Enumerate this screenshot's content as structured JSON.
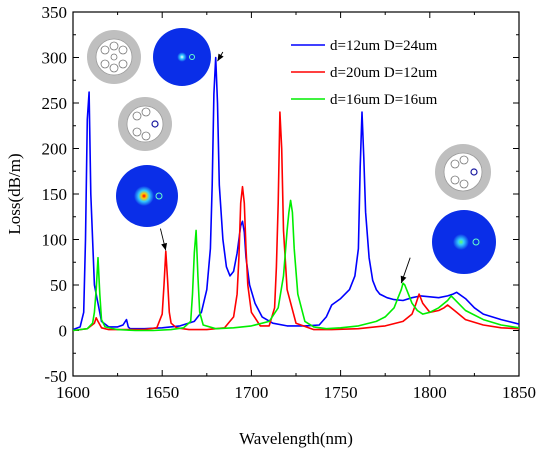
{
  "chart_data": {
    "type": "line",
    "title": "",
    "xlabel": "Wavelength(nm)",
    "ylabel": "Loss(dB/m)",
    "xlim": [
      1600,
      1850
    ],
    "ylim": [
      -50,
      350
    ],
    "xticks": [
      1600,
      1650,
      1700,
      1750,
      1800,
      1850
    ],
    "yticks": [
      -50,
      0,
      50,
      100,
      150,
      200,
      250,
      300,
      350
    ],
    "legend_position": "top-right",
    "grid": false,
    "series": [
      {
        "name": "d=12um D=24um",
        "color": "#0000ff",
        "x": [
          1600,
          1604,
          1606,
          1607,
          1608,
          1609,
          1610,
          1612,
          1616,
          1620,
          1625,
          1628,
          1630,
          1631,
          1632,
          1640,
          1650,
          1660,
          1668,
          1672,
          1675,
          1677,
          1678,
          1679,
          1680,
          1681,
          1682,
          1684,
          1686,
          1688,
          1690,
          1692,
          1694,
          1695,
          1696,
          1697,
          1699,
          1702,
          1706,
          1712,
          1720,
          1730,
          1738,
          1742,
          1745,
          1750,
          1755,
          1758,
          1760,
          1761,
          1762,
          1763,
          1764,
          1766,
          1768,
          1770,
          1772,
          1774,
          1776,
          1780,
          1785,
          1790,
          1795,
          1800,
          1805,
          1810,
          1813,
          1815,
          1820,
          1825,
          1830,
          1840,
          1850
        ],
        "y": [
          1,
          4,
          20,
          100,
          232,
          262,
          150,
          50,
          10,
          4,
          4,
          6,
          12,
          4,
          2,
          2,
          3,
          5,
          10,
          20,
          45,
          90,
          160,
          260,
          300,
          250,
          160,
          100,
          70,
          60,
          65,
          85,
          115,
          120,
          108,
          80,
          50,
          30,
          15,
          8,
          5,
          5,
          6,
          15,
          28,
          35,
          45,
          60,
          90,
          180,
          240,
          190,
          130,
          80,
          55,
          45,
          40,
          38,
          36,
          34,
          33,
          36,
          38,
          37,
          36,
          38,
          40,
          42,
          35,
          25,
          18,
          12,
          7
        ]
      },
      {
        "name": "d=20um D=12um",
        "color": "#ff0000",
        "x": [
          1600,
          1608,
          1612,
          1613,
          1614,
          1616,
          1620,
          1630,
          1640,
          1647,
          1650,
          1651,
          1652,
          1653,
          1654,
          1655,
          1658,
          1665,
          1675,
          1685,
          1690,
          1692,
          1693,
          1694,
          1695,
          1696,
          1697,
          1698,
          1700,
          1705,
          1710,
          1713,
          1714,
          1715,
          1716,
          1717,
          1718,
          1720,
          1725,
          1735,
          1745,
          1760,
          1775,
          1785,
          1790,
          1792,
          1794,
          1796,
          1800,
          1805,
          1808,
          1810,
          1815,
          1820,
          1830,
          1840,
          1850
        ],
        "y": [
          0,
          2,
          8,
          14,
          10,
          3,
          1,
          1,
          1,
          3,
          18,
          50,
          87,
          55,
          20,
          8,
          3,
          1,
          1,
          3,
          15,
          40,
          80,
          140,
          158,
          140,
          90,
          50,
          20,
          5,
          5,
          25,
          70,
          140,
          240,
          200,
          110,
          45,
          8,
          1,
          1,
          2,
          5,
          10,
          18,
          28,
          40,
          30,
          20,
          22,
          25,
          28,
          20,
          12,
          6,
          3,
          2
        ]
      },
      {
        "name": "d=16um D=16um",
        "color": "#00ee00",
        "x": [
          1600,
          1608,
          1611,
          1612,
          1613,
          1614,
          1615,
          1616,
          1618,
          1625,
          1635,
          1645,
          1655,
          1662,
          1666,
          1667,
          1668,
          1669,
          1670,
          1671,
          1673,
          1680,
          1690,
          1700,
          1710,
          1715,
          1718,
          1720,
          1721,
          1722,
          1723,
          1724,
          1726,
          1730,
          1735,
          1742,
          1750,
          1760,
          1770,
          1775,
          1780,
          1782,
          1784,
          1785,
          1786,
          1788,
          1790,
          1793,
          1796,
          1800,
          1805,
          1810,
          1812,
          1815,
          1820,
          1830,
          1840,
          1850
        ],
        "y": [
          0,
          2,
          8,
          20,
          45,
          80,
          40,
          12,
          4,
          1,
          0,
          0,
          1,
          3,
          10,
          40,
          85,
          110,
          60,
          20,
          6,
          2,
          3,
          5,
          10,
          25,
          60,
          110,
          130,
          143,
          130,
          90,
          40,
          10,
          4,
          2,
          3,
          5,
          10,
          15,
          25,
          35,
          45,
          52,
          50,
          40,
          30,
          22,
          18,
          20,
          25,
          33,
          38,
          32,
          22,
          12,
          6,
          3
        ]
      }
    ],
    "annotations": [
      {
        "text": "",
        "from": [
          1684,
          306
        ],
        "to": [
          1681,
          296
        ]
      },
      {
        "text": "",
        "from": [
          1649,
          112
        ],
        "to": [
          1652,
          88
        ]
      },
      {
        "text": "",
        "from": [
          1789,
          80
        ],
        "to": [
          1784,
          52
        ]
      }
    ]
  },
  "insets": [
    {
      "name": "fiber-cross-section-1",
      "type": "fiber-structure"
    },
    {
      "name": "mode-field-1",
      "type": "mode-field"
    },
    {
      "name": "fiber-cross-section-2",
      "type": "fiber-structure"
    },
    {
      "name": "mode-field-2",
      "type": "mode-field"
    },
    {
      "name": "fiber-cross-section-3",
      "type": "fiber-structure"
    },
    {
      "name": "mode-field-3",
      "type": "mode-field"
    }
  ],
  "colors": {
    "axis": "#000000",
    "background": "#ffffff",
    "fiber_gray": "#bfbfbf",
    "mode_blue": "#0a2ee8"
  }
}
